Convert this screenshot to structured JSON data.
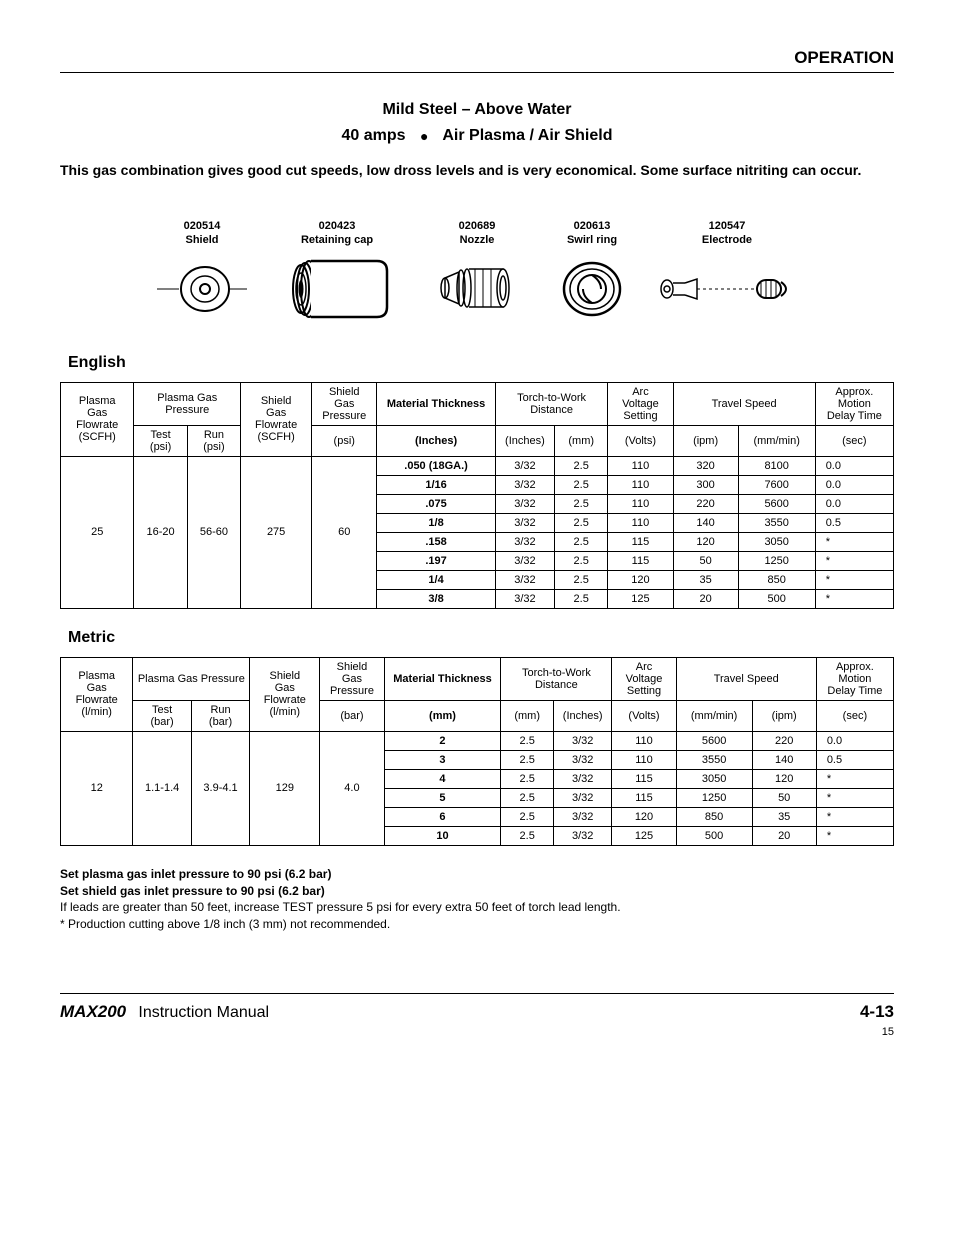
{
  "header": {
    "section": "OPERATION"
  },
  "titles": {
    "main": "Mild Steel – Above Water",
    "sub_left": "40 amps",
    "sub_right": "Air Plasma / Air Shield"
  },
  "intro": "This gas combination gives good cut speeds, low dross levels and is very economical. Some surface nitriting can occur.",
  "parts": [
    {
      "num": "020514",
      "name": "Shield"
    },
    {
      "num": "020423",
      "name": "Retaining cap"
    },
    {
      "num": "020689",
      "name": "Nozzle"
    },
    {
      "num": "020613",
      "name": "Swirl ring"
    },
    {
      "num": "120547",
      "name": "Electrode"
    }
  ],
  "english": {
    "label": "English",
    "headers": {
      "plasma_flow_top": "Plasma Gas Flowrate (SCFH)",
      "plasma_press": "Plasma Gas Pressure",
      "test": "Test (psi)",
      "run": "Run (psi)",
      "shield_flow": "Shield Gas Flowrate (SCFH)",
      "shield_press": "Shield Gas Pressure",
      "shield_press_u": "(psi)",
      "mat_thk": "Material Thickness",
      "mat_thk_u": "(Inches)",
      "ttw": "Torch-to-Work Distance",
      "ttw_in": "(Inches)",
      "ttw_mm": "(mm)",
      "arc": "Arc Voltage Setting",
      "arc_u": "(Volts)",
      "travel": "Travel Speed",
      "travel_ipm": "(ipm)",
      "travel_mm": "(mm/min)",
      "delay": "Approx. Motion Delay Time",
      "delay_u": "(sec)"
    },
    "common": {
      "plasma_flow": "25",
      "test": "16-20",
      "run": "56-60",
      "shield_flow": "275",
      "shield_press": "60"
    },
    "rows": [
      {
        "thk": ".050 (18GA.)",
        "in": "3/32",
        "mm": "2.5",
        "v": "110",
        "ipm": "320",
        "mmm": "8100",
        "d": "0.0"
      },
      {
        "thk": "1/16",
        "in": "3/32",
        "mm": "2.5",
        "v": "110",
        "ipm": "300",
        "mmm": "7600",
        "d": "0.0"
      },
      {
        "thk": ".075",
        "in": "3/32",
        "mm": "2.5",
        "v": "110",
        "ipm": "220",
        "mmm": "5600",
        "d": "0.0"
      },
      {
        "thk": "1/8",
        "in": "3/32",
        "mm": "2.5",
        "v": "110",
        "ipm": "140",
        "mmm": "3550",
        "d": "0.5"
      },
      {
        "thk": ".158",
        "in": "3/32",
        "mm": "2.5",
        "v": "115",
        "ipm": "120",
        "mmm": "3050",
        "d": "*"
      },
      {
        "thk": ".197",
        "in": "3/32",
        "mm": "2.5",
        "v": "115",
        "ipm": "50",
        "mmm": "1250",
        "d": "*"
      },
      {
        "thk": "1/4",
        "in": "3/32",
        "mm": "2.5",
        "v": "120",
        "ipm": "35",
        "mmm": "850",
        "d": "*"
      },
      {
        "thk": "3/8",
        "in": "3/32",
        "mm": "2.5",
        "v": "125",
        "ipm": "20",
        "mmm": "500",
        "d": "*"
      }
    ]
  },
  "metric": {
    "label": "Metric",
    "headers": {
      "plasma_flow_top": "Plasma Gas Flowrate (l/min)",
      "plasma_press": "Plasma Gas Pressure",
      "test": "Test (bar)",
      "run": "Run (bar)",
      "shield_flow": "Shield Gas Flowrate (l/min)",
      "shield_press": "Shield Gas Pressure",
      "shield_press_u": "(bar)",
      "mat_thk": "Material Thickness",
      "mat_thk_u": "(mm)",
      "ttw": "Torch-to-Work Distance",
      "ttw_mm": "(mm)",
      "ttw_in": "(Inches)",
      "arc": "Arc Voltage Setting",
      "arc_u": "(Volts)",
      "travel": "Travel Speed",
      "travel_mm": "(mm/min)",
      "travel_ipm": "(ipm)",
      "delay": "Approx. Motion Delay Time",
      "delay_u": "(sec)"
    },
    "common": {
      "plasma_flow": "12",
      "test": "1.1-1.4",
      "run": "3.9-4.1",
      "shield_flow": "129",
      "shield_press": "4.0"
    },
    "rows": [
      {
        "thk": "2",
        "mm": "2.5",
        "in": "3/32",
        "v": "110",
        "mmm": "5600",
        "ipm": "220",
        "d": "0.0"
      },
      {
        "thk": "3",
        "mm": "2.5",
        "in": "3/32",
        "v": "110",
        "mmm": "3550",
        "ipm": "140",
        "d": "0.5"
      },
      {
        "thk": "4",
        "mm": "2.5",
        "in": "3/32",
        "v": "115",
        "mmm": "3050",
        "ipm": "120",
        "d": "*"
      },
      {
        "thk": "5",
        "mm": "2.5",
        "in": "3/32",
        "v": "115",
        "mmm": "1250",
        "ipm": "50",
        "d": "*"
      },
      {
        "thk": "6",
        "mm": "2.5",
        "in": "3/32",
        "v": "120",
        "mmm": "850",
        "ipm": "35",
        "d": "*"
      },
      {
        "thk": "10",
        "mm": "2.5",
        "in": "3/32",
        "v": "125",
        "mmm": "500",
        "ipm": "20",
        "d": "*"
      }
    ]
  },
  "notes": {
    "l1": "Set plasma gas inlet pressure to 90 psi (6.2 bar)",
    "l2": "Set shield gas inlet pressure to 90 psi (6.2 bar)",
    "l3": "If leads are greater than 50 feet, increase TEST pressure 5 psi for every extra 50 feet of torch lead length.",
    "l4": "* Production cutting above 1/8 inch (3 mm) not recommended."
  },
  "footer": {
    "brand": "MAX200",
    "manual": "Instruction Manual",
    "page": "4-13",
    "subpage": "15"
  }
}
